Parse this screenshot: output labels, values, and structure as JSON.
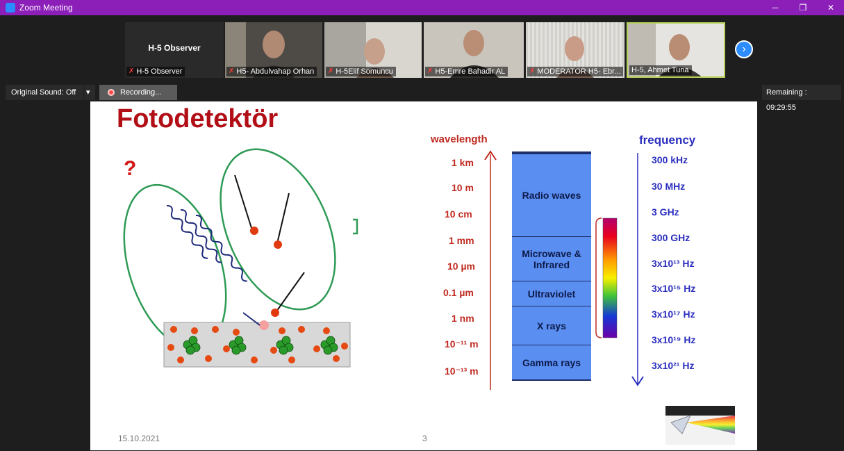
{
  "window": {
    "title": "Zoom Meeting",
    "controls": {
      "minimize": "─",
      "restore": "❐",
      "close": "✕"
    }
  },
  "participants": [
    {
      "name": "H-5 Observer",
      "display": "H-5 Observer",
      "muted": true,
      "video": false
    },
    {
      "name": "H5- Abdulvahap Orhan",
      "muted": true,
      "video": true
    },
    {
      "name": "H-5Elif Somuncu",
      "muted": true,
      "video": true
    },
    {
      "name": "H5-Emre Bahadir AL",
      "muted": true,
      "video": true
    },
    {
      "name": "MODERATOR H5- Ebr...",
      "muted": true,
      "video": true
    },
    {
      "name": "H-5, Ahmet Tuna",
      "muted": false,
      "video": true
    }
  ],
  "next_arrow": "›",
  "controls": {
    "original_sound": "Original Sound: Off",
    "dropdown": "▾",
    "recording": "Recording...",
    "remaining": "Remaining : 09:29:55"
  },
  "slide": {
    "title": "Fotodetektör",
    "question_mark": "?",
    "date": "15.10.2021",
    "page": "3",
    "spectrum": {
      "wavelength_header": "wavelength",
      "frequency_header": "frequency",
      "wavelengths": [
        "1 km",
        "10 m",
        "10 cm",
        "1 mm",
        "10 µm",
        "0.1 µm",
        "1 nm",
        "10⁻¹¹ m",
        "10⁻¹³ m"
      ],
      "frequencies": [
        "300 kHz",
        "30 MHz",
        "3 GHz",
        "300 GHz",
        "3x10¹³ Hz",
        "3x10¹⁵ Hz",
        "3x10¹⁷ Hz",
        "3x10¹⁹ Hz",
        "3x10²¹ Hz"
      ],
      "bands": [
        "Radio waves",
        "Microwave & Infrared",
        "Ultraviolet",
        "X rays",
        "Gamma rays"
      ]
    }
  },
  "colors": {
    "titlebar": "#8b1fb8",
    "accent_blue": "#2d8cff",
    "slide_title": "#b10e16",
    "wavelength": "#c02a20",
    "frequency": "#2b2fbe",
    "band_fill": "#5a8ef0"
  }
}
